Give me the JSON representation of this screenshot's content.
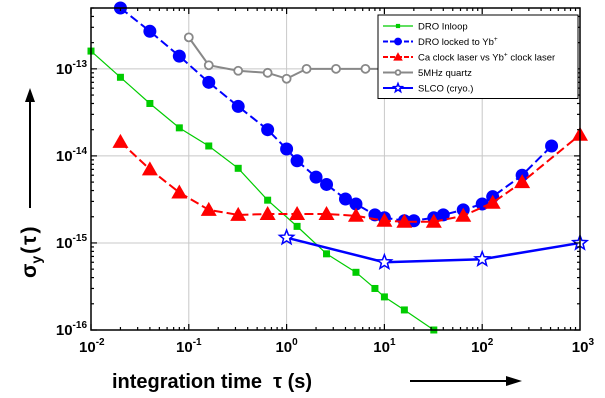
{
  "chart_data": {
    "type": "line",
    "x_scale": "log",
    "y_scale": "log",
    "xlim": [
      0.01,
      1000
    ],
    "ylim": [
      1e-16,
      5e-13
    ],
    "grid": true,
    "legend_position": "top-right",
    "xlabel": {
      "prefix": "integration time  ",
      "symbol": "τ",
      "suffix": " (s)"
    },
    "ylabel": {
      "symbol": "σ",
      "subscript": "y",
      "open": "(",
      "var": "τ",
      "close": ")"
    },
    "x_ticks": [
      {
        "value": 0.01,
        "base": "10",
        "exp": "-2"
      },
      {
        "value": 0.1,
        "base": "10",
        "exp": "-1"
      },
      {
        "value": 1,
        "base": "10",
        "exp": "0"
      },
      {
        "value": 10,
        "base": "10",
        "exp": "1"
      },
      {
        "value": 100,
        "base": "10",
        "exp": "2"
      },
      {
        "value": 1000,
        "base": "10",
        "exp": "3"
      }
    ],
    "y_ticks": [
      {
        "value": 1e-16,
        "base": "10",
        "exp": "-16"
      },
      {
        "value": 1e-15,
        "base": "10",
        "exp": "-15"
      },
      {
        "value": 1e-14,
        "base": "10",
        "exp": "-14"
      },
      {
        "value": 1e-13,
        "base": "10",
        "exp": "-13"
      }
    ],
    "series": [
      {
        "name": "DRO Inloop",
        "name_sup": "",
        "color": "#00cc00",
        "marker": "square",
        "dashed": false,
        "x": [
          0.01,
          0.02,
          0.04,
          0.08,
          0.16,
          0.32,
          0.64,
          1.28,
          2.56,
          5.12,
          8,
          10,
          16,
          32
        ],
        "y": [
          1.6e-13,
          8e-14,
          4e-14,
          2.1e-14,
          1.3e-14,
          7.2e-15,
          3.1e-15,
          1.55e-15,
          7.5e-16,
          4.6e-16,
          3e-16,
          2.4e-16,
          1.7e-16,
          1e-16
        ]
      },
      {
        "name": "DRO locked to Yb",
        "name_sup": "+",
        "color": "#0000ff",
        "marker": "circle",
        "dashed": true,
        "x": [
          0.02,
          0.04,
          0.08,
          0.16,
          0.32,
          0.64,
          1,
          1.28,
          2,
          2.56,
          4,
          5.12,
          8,
          10,
          16,
          20,
          32,
          40,
          64,
          100,
          128,
          256,
          512
        ],
        "y": [
          5e-13,
          2.7e-13,
          1.4e-13,
          7e-14,
          3.7e-14,
          2e-14,
          1.2e-14,
          8.8e-15,
          5.7e-15,
          4.7e-15,
          3.2e-15,
          2.8e-15,
          2.1e-15,
          1.95e-15,
          1.8e-15,
          1.8e-15,
          1.95e-15,
          2.1e-15,
          2.4e-15,
          2.8e-15,
          3.4e-15,
          6e-15,
          1.3e-14
        ]
      },
      {
        "name": "Ca clock laser vs Yb",
        "name_sup": "+",
        "name_suffix": " clock laser",
        "color": "#ff0000",
        "marker": "triangle",
        "dashed": true,
        "x": [
          0.02,
          0.04,
          0.08,
          0.16,
          0.32,
          0.64,
          1.28,
          2.56,
          5.12,
          10,
          16,
          32,
          64,
          128,
          256,
          1000
        ],
        "y": [
          1.45e-14,
          7e-15,
          3.8e-15,
          2.4e-15,
          2.1e-15,
          2.15e-15,
          2.15e-15,
          2.15e-15,
          2.05e-15,
          1.8e-15,
          1.75e-15,
          1.75e-15,
          2.05e-15,
          2.9e-15,
          5e-15,
          1.75e-14
        ]
      },
      {
        "name": "5MHz quartz",
        "name_sup": "",
        "color": "#888888",
        "marker": "ocircle",
        "dashed": false,
        "x": [
          0.1,
          0.16,
          0.32,
          0.64,
          1,
          1.6,
          3.2,
          6.4,
          10
        ],
        "y": [
          2.3e-13,
          1.1e-13,
          9.5e-14,
          9e-14,
          7.7e-14,
          1e-13,
          1e-13,
          1e-13,
          1e-13
        ]
      },
      {
        "name": "SLCO (cryo.)",
        "name_sup": "",
        "color": "#0000ff",
        "marker": "star",
        "dashed": false,
        "x": [
          1,
          10,
          100,
          1000
        ],
        "y": [
          1.15e-15,
          6e-16,
          6.5e-16,
          1e-15
        ]
      }
    ]
  }
}
